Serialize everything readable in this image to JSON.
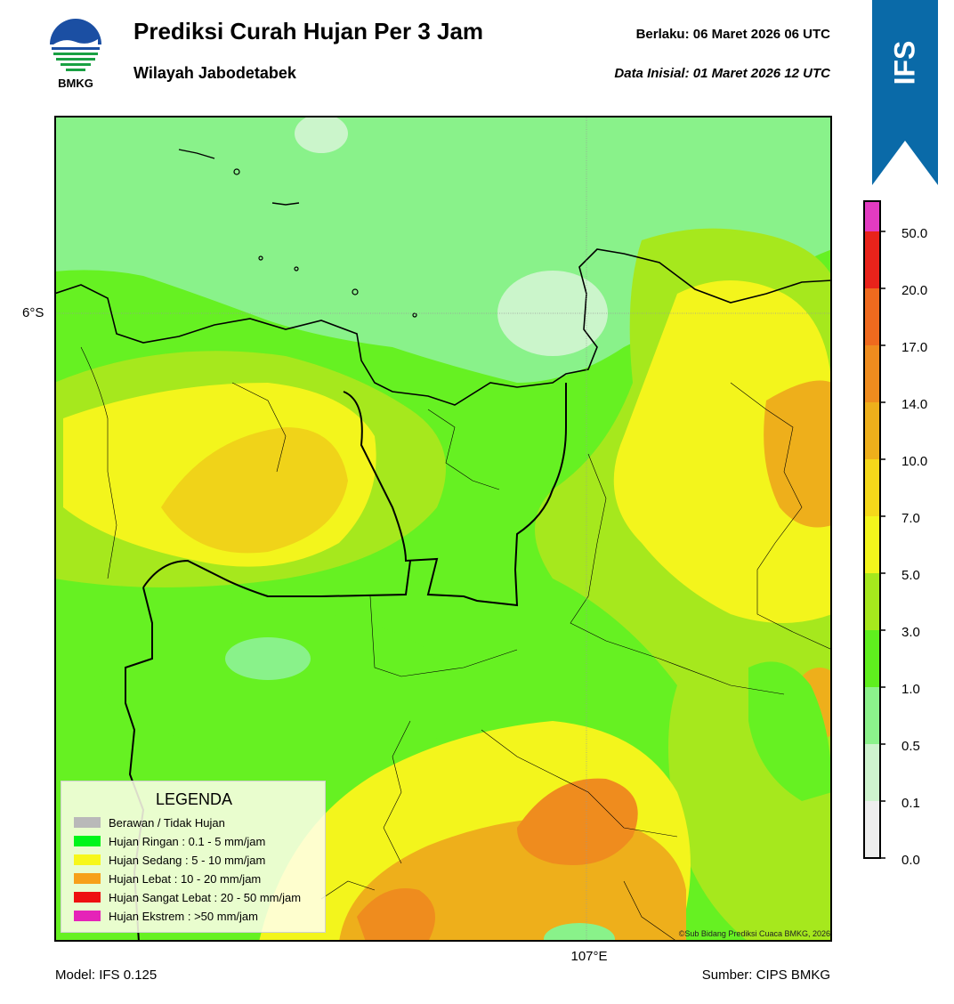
{
  "header": {
    "logo_text": "BMKG",
    "title": "Prediksi Curah Hujan Per 3 Jam",
    "subtitle": "Wilayah Jabodetabek",
    "valid": "Berlaku:  06 Maret 2026 06 UTC",
    "initial": "Data Inisial:  01 Maret 2026 12 UTC"
  },
  "ribbon": {
    "label": "IFS",
    "color": "#0a6aa8"
  },
  "map": {
    "lat_label": "6°S",
    "lon_label": "107°E",
    "copyright": "©Sub Bidang Prediksi Cuaca BMKG, 2026"
  },
  "colorbar": {
    "ticks": [
      "50.0",
      "20.0",
      "17.0",
      "14.0",
      "10.0",
      "7.0",
      "5.0",
      "3.0",
      "1.0",
      "0.5",
      "0.1",
      "0.0"
    ],
    "colors": [
      "#e23bc1",
      "#e8231b",
      "#ef6a1e",
      "#ef8c1e",
      "#eeaf1b",
      "#f5d81a",
      "#f3f51c",
      "#a6e81d",
      "#5fef1e",
      "#8bf28b",
      "#cef3ce",
      "#eeeeee"
    ]
  },
  "legend": {
    "title": "LEGENDA",
    "items": [
      {
        "label": "Berawan / Tidak Hujan",
        "color": "#b9b9b9"
      },
      {
        "label": "Hujan Ringan : 0.1 - 5 mm/jam",
        "color": "#00f51a"
      },
      {
        "label": "Hujan Sedang : 5 - 10 mm/jam",
        "color": "#f7f71a"
      },
      {
        "label": "Hujan Lebat : 10 - 20 mm/jam",
        "color": "#f7a019"
      },
      {
        "label": "Hujan Sangat Lebat : 20 - 50 mm/jam",
        "color": "#ee1010"
      },
      {
        "label": "Hujan Ekstrem : >50 mm/jam",
        "color": "#e523b8"
      }
    ]
  },
  "footer": {
    "model": "Model: IFS 0.125",
    "source": "Sumber: CIPS BMKG"
  }
}
